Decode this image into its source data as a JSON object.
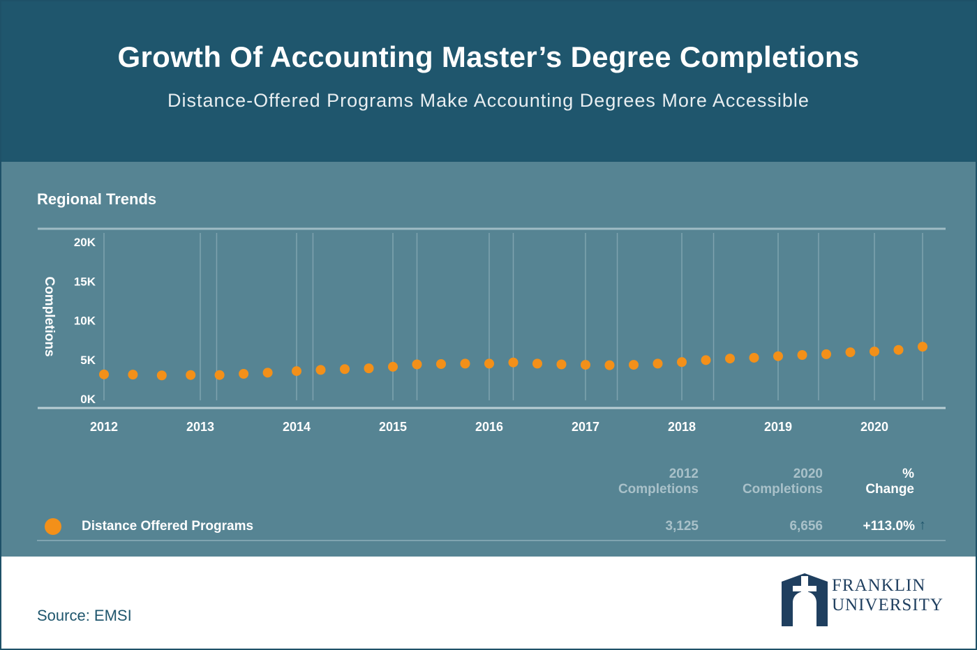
{
  "header": {
    "title": "Growth Of Accounting Master’s Degree Completions",
    "subtitle": "Distance-Offered Programs Make Accounting Degrees More Accessible"
  },
  "panel": {
    "section_title": "Regional Trends"
  },
  "chart_data": {
    "type": "scatter",
    "ylabel": "Completions",
    "xlabel": "",
    "y_ticks": [
      "0K",
      "5K",
      "10K",
      "15K",
      "20K"
    ],
    "x_ticks": [
      "2012",
      "2013",
      "2014",
      "2015",
      "2016",
      "2017",
      "2018",
      "2019",
      "2020"
    ],
    "ylim": [
      0,
      20000
    ],
    "xlim": [
      2012,
      2020.5
    ],
    "grid": "vertical",
    "series": [
      {
        "name": "Distance Offered Programs",
        "color": "#f39019",
        "x": [
          2012.0,
          2012.3,
          2012.6,
          2012.9,
          2013.2,
          2013.45,
          2013.7,
          2014.0,
          2014.25,
          2014.5,
          2014.75,
          2015.0,
          2015.25,
          2015.5,
          2015.75,
          2016.0,
          2016.25,
          2016.5,
          2016.75,
          2017.0,
          2017.25,
          2017.5,
          2017.75,
          2018.0,
          2018.25,
          2018.5,
          2018.75,
          2019.0,
          2019.25,
          2019.5,
          2019.75,
          2020.0,
          2020.25,
          2020.5
        ],
        "values": [
          3125,
          3100,
          3000,
          3050,
          3050,
          3200,
          3350,
          3550,
          3700,
          3800,
          3900,
          4100,
          4400,
          4450,
          4500,
          4500,
          4650,
          4500,
          4400,
          4350,
          4300,
          4350,
          4500,
          4700,
          4950,
          5150,
          5250,
          5450,
          5600,
          5700,
          5950,
          6050,
          6250,
          6656
        ]
      }
    ]
  },
  "summary": {
    "headers": {
      "start": [
        "2012",
        "Completions"
      ],
      "end": [
        "2020",
        "Completions"
      ],
      "change": [
        "%",
        "Change"
      ]
    },
    "rows": [
      {
        "label": "Distance Offered Programs",
        "start": "3,125",
        "end": "6,656",
        "change": "+113.0%",
        "trend_icon": "arrow-up-icon",
        "dot_color": "#f39019"
      }
    ]
  },
  "footer": {
    "source": "Source: EMSI",
    "logo_line1": "FRANKLIN",
    "logo_line2": "UNIVERSITY"
  }
}
